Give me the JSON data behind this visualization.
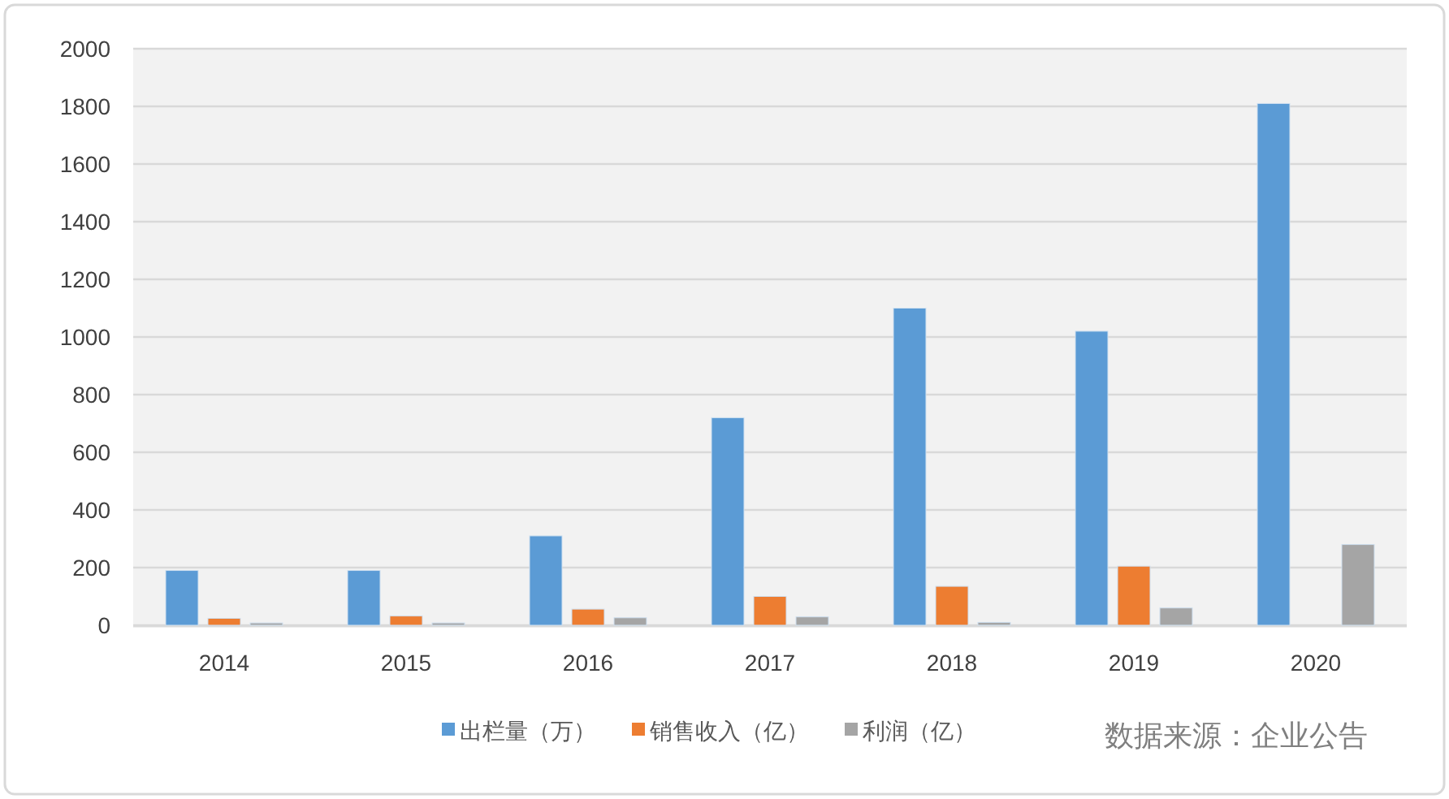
{
  "chart_data": {
    "type": "bar",
    "categories": [
      "2014",
      "2015",
      "2016",
      "2017",
      "2018",
      "2019",
      "2020"
    ],
    "series": [
      {
        "name": "出栏量（万）",
        "color": "#5b9bd5",
        "values": [
          190,
          190,
          310,
          720,
          1100,
          1020,
          1810
        ]
      },
      {
        "name": "销售收入（亿）",
        "color": "#ed7d31",
        "values": [
          24,
          32,
          56,
          100,
          135,
          205,
          null
        ]
      },
      {
        "name": "利润（亿）",
        "color": "#a5a5a5",
        "values": [
          8,
          8,
          26,
          29,
          10,
          60,
          280
        ]
      }
    ],
    "ylim": [
      0,
      2000
    ],
    "yticks": [
      0,
      200,
      400,
      600,
      800,
      1000,
      1200,
      1400,
      1600,
      1800,
      2000
    ],
    "grid": "y",
    "legend": "bottom",
    "annotations": [
      "数据来源：企业公告"
    ]
  }
}
